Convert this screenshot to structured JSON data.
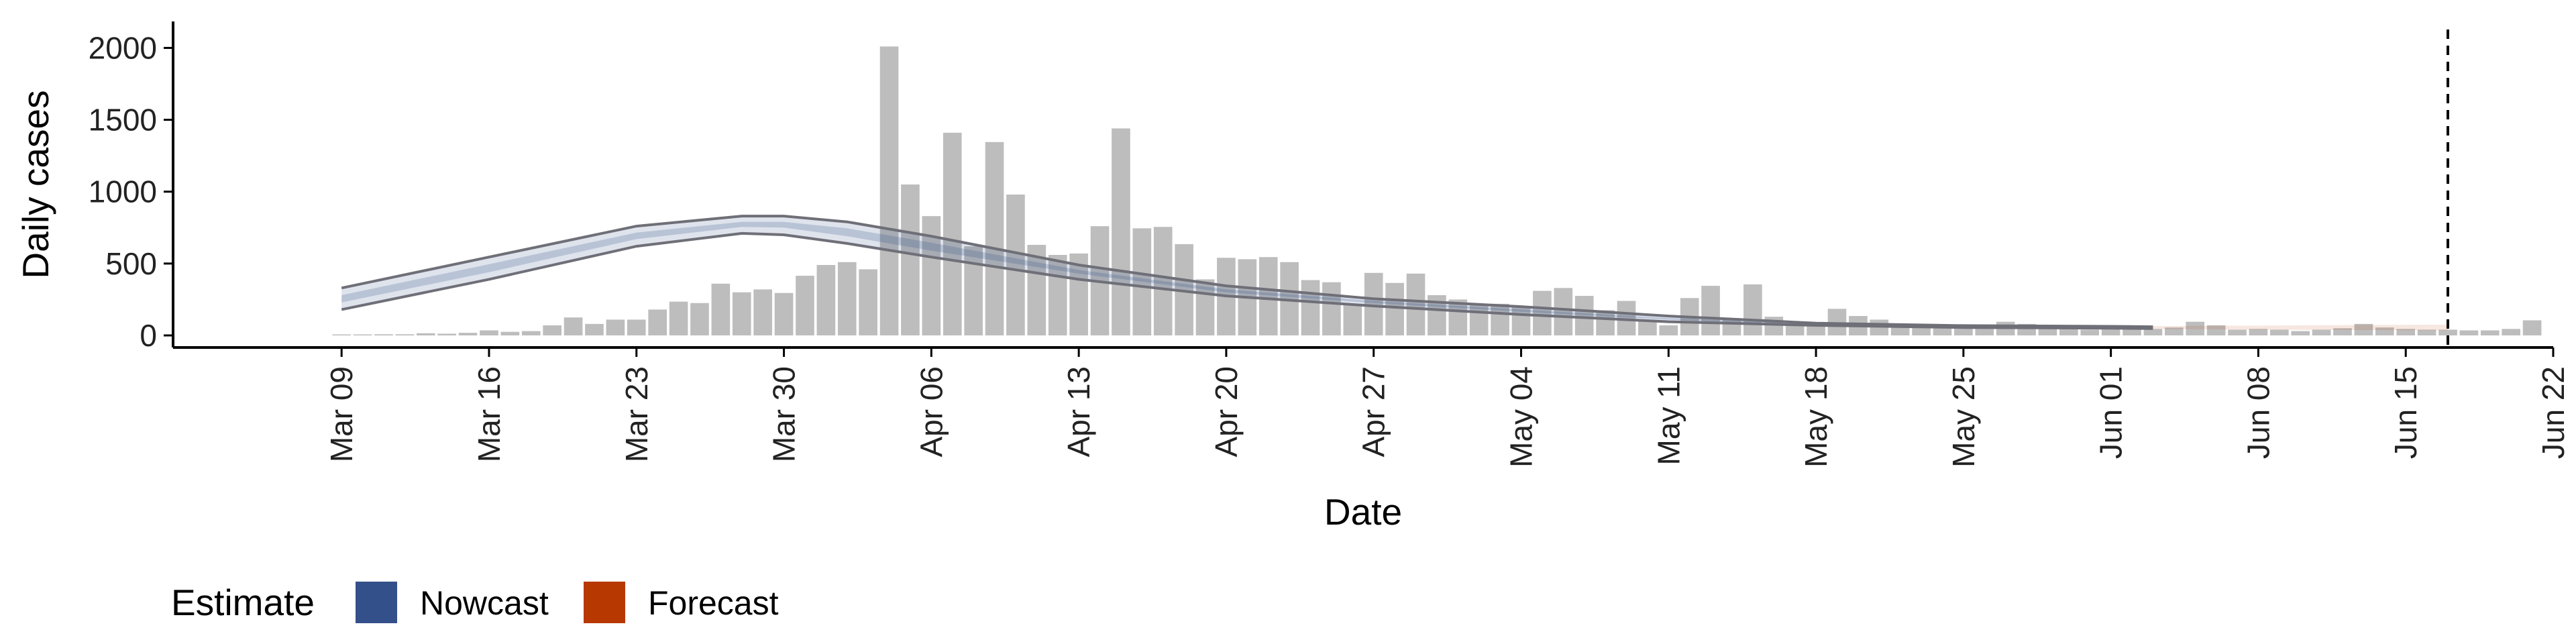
{
  "chart_data": {
    "type": "bar",
    "xlabel": "Date",
    "ylabel": "Daily cases",
    "ylim": [
      0,
      2100
    ],
    "yticks": [
      0,
      500,
      1000,
      1500,
      2000
    ],
    "x_range": [
      "2020-03-01",
      "2020-06-22"
    ],
    "x_ticks": [
      "2020-03-09",
      "2020-03-16",
      "2020-03-23",
      "2020-03-30",
      "2020-04-06",
      "2020-04-13",
      "2020-04-20",
      "2020-04-27",
      "2020-05-04",
      "2020-05-11",
      "2020-05-18",
      "2020-05-25",
      "2020-06-01",
      "2020-06-08",
      "2020-06-15",
      "2020-06-22"
    ],
    "x_tick_labels": [
      "Mar 09",
      "Mar 16",
      "Mar 23",
      "Mar 30",
      "Apr 06",
      "Apr 13",
      "Apr 20",
      "Apr 27",
      "May 04",
      "May 11",
      "May 18",
      "May 25",
      "Jun 01",
      "Jun 08",
      "Jun 15",
      "Jun 22"
    ],
    "vline_date": "2020-06-17",
    "grid": false,
    "legend": {
      "title": "Estimate",
      "position": "bottom-left",
      "items": [
        {
          "label": "Nowcast",
          "color": "#34508a"
        },
        {
          "label": "Forecast",
          "color": "#b73800"
        }
      ]
    },
    "colors": {
      "bars": "#bdbdbd",
      "nowcast_band": "#34508a",
      "forecast_band": "#b73800",
      "band_outline": "#6f6f78",
      "axis": "#000000",
      "vline": "#000000"
    },
    "bars": {
      "start_date": "2020-03-09",
      "values": [
        5,
        3,
        8,
        8,
        15,
        12,
        18,
        35,
        25,
        30,
        70,
        125,
        80,
        110,
        110,
        180,
        235,
        225,
        360,
        300,
        320,
        295,
        415,
        490,
        510,
        460,
        2010,
        1050,
        830,
        1410,
        620,
        1345,
        980,
        630,
        560,
        570,
        760,
        1440,
        745,
        755,
        635,
        390,
        540,
        530,
        545,
        510,
        385,
        370,
        210,
        435,
        365,
        430,
        280,
        250,
        210,
        220,
        200,
        310,
        330,
        275,
        175,
        240,
        100,
        70,
        260,
        345,
        120,
        355,
        130,
        80,
        90,
        185,
        135,
        110,
        80,
        60,
        70,
        70,
        50,
        95,
        80,
        70,
        60,
        40,
        55,
        50,
        45,
        55,
        95,
        70,
        40,
        45,
        40,
        30,
        40,
        50,
        80,
        55,
        45,
        40,
        40,
        35,
        35,
        45,
        105
      ]
    },
    "nowcast": {
      "dates": [
        "2020-03-09",
        "2020-03-16",
        "2020-03-23",
        "2020-03-28",
        "2020-03-30",
        "2020-04-02",
        "2020-04-06",
        "2020-04-13",
        "2020-04-20",
        "2020-04-27",
        "2020-05-04",
        "2020-05-11",
        "2020-05-18",
        "2020-05-25",
        "2020-06-01",
        "2020-06-03"
      ],
      "lower": [
        180,
        390,
        620,
        710,
        700,
        640,
        545,
        390,
        275,
        205,
        145,
        95,
        70,
        55,
        50,
        48
      ],
      "upper": [
        330,
        545,
        760,
        830,
        830,
        790,
        690,
        490,
        345,
        255,
        200,
        135,
        85,
        68,
        63,
        60
      ],
      "mid_lower": [
        230,
        440,
        670,
        755,
        750,
        690,
        590,
        430,
        300,
        225,
        165,
        110,
        75,
        60,
        55,
        53
      ],
      "mid_upper": [
        280,
        495,
        715,
        790,
        790,
        745,
        645,
        455,
        320,
        240,
        180,
        120,
        80,
        64,
        59,
        56
      ]
    },
    "forecast": {
      "dates": [
        "2020-06-03",
        "2020-06-08",
        "2020-06-12",
        "2020-06-17"
      ],
      "lower": [
        45,
        40,
        38,
        35
      ],
      "upper": [
        65,
        68,
        72,
        75
      ]
    }
  }
}
